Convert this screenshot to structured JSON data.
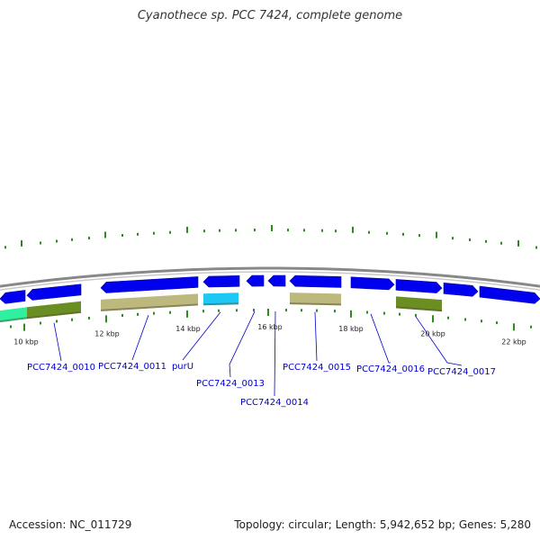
{
  "title": "Cyanothece sp. PCC 7424, complete genome",
  "footer": {
    "accession": "Accession: NC_011729",
    "summary": "Topology: circular; Length: 5,942,652 bp; Genes: 5,280"
  },
  "colors": {
    "gene_forward": "#0000ee",
    "track_line": "#888888",
    "tick": "#2e8b1e",
    "gene_label": "#0000cc",
    "khaki": "#bdb97e",
    "olive": "#6b8e23",
    "cyan": "#1ec8f5",
    "mint": "#2ef0a0"
  },
  "scale_labels": [
    "10 kbp",
    "12 kbp",
    "14 kbp",
    "16 kbp",
    "18 kbp",
    "20 kbp",
    "22 kbp"
  ],
  "genes": [
    {
      "label": "PCC7424_0010",
      "strand": "reverse"
    },
    {
      "label": "PCC7424_0011",
      "strand": "reverse"
    },
    {
      "label": "purU",
      "strand": "reverse"
    },
    {
      "label": "PCC7424_0013",
      "strand": "reverse"
    },
    {
      "label": "PCC7424_0014",
      "strand": "reverse"
    },
    {
      "label": "PCC7424_0015",
      "strand": "reverse"
    },
    {
      "label": "PCC7424_0016",
      "strand": "forward"
    },
    {
      "label": "PCC7424_0017",
      "strand": "forward"
    }
  ]
}
